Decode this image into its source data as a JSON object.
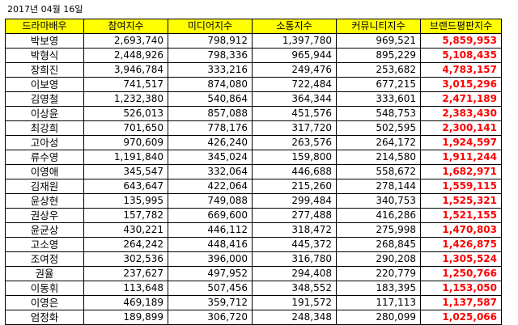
{
  "caption": "2017년 04월 16일",
  "headers": [
    "드라마배우",
    "참여지수",
    "미디어지수",
    "소통지수",
    "커뮤니티지수",
    "브랜드평판지수"
  ],
  "accent_color": "#ff0000",
  "header_color": "#ffff00",
  "rows": [
    {
      "name": "박보영",
      "participation": "2,693,740",
      "media": "798,912",
      "communication": "1,397,780",
      "community": "969,521",
      "brand": "5,859,953"
    },
    {
      "name": "박형식",
      "participation": "2,448,926",
      "media": "798,336",
      "communication": "965,944",
      "community": "895,229",
      "brand": "5,108,435"
    },
    {
      "name": "장희진",
      "participation": "3,946,784",
      "media": "333,216",
      "communication": "249,476",
      "community": "253,682",
      "brand": "4,783,157"
    },
    {
      "name": "이보영",
      "participation": "741,517",
      "media": "874,080",
      "communication": "722,484",
      "community": "677,215",
      "brand": "3,015,296"
    },
    {
      "name": "김영철",
      "participation": "1,232,380",
      "media": "540,864",
      "communication": "364,344",
      "community": "333,601",
      "brand": "2,471,189"
    },
    {
      "name": "이상윤",
      "participation": "526,013",
      "media": "857,088",
      "communication": "451,576",
      "community": "548,753",
      "brand": "2,383,430"
    },
    {
      "name": "최강희",
      "participation": "701,650",
      "media": "778,176",
      "communication": "317,720",
      "community": "502,595",
      "brand": "2,300,141"
    },
    {
      "name": "고아성",
      "participation": "970,609",
      "media": "426,240",
      "communication": "263,576",
      "community": "264,172",
      "brand": "1,924,597"
    },
    {
      "name": "류수영",
      "participation": "1,191,840",
      "media": "345,024",
      "communication": "159,800",
      "community": "214,580",
      "brand": "1,911,244"
    },
    {
      "name": "이영애",
      "participation": "345,547",
      "media": "332,064",
      "communication": "446,688",
      "community": "558,672",
      "brand": "1,682,971"
    },
    {
      "name": "김재원",
      "participation": "643,647",
      "media": "422,064",
      "communication": "215,260",
      "community": "278,144",
      "brand": "1,559,115"
    },
    {
      "name": "윤상현",
      "participation": "135,995",
      "media": "749,088",
      "communication": "299,484",
      "community": "340,753",
      "brand": "1,525,321"
    },
    {
      "name": "권상우",
      "participation": "157,782",
      "media": "669,600",
      "communication": "277,488",
      "community": "416,286",
      "brand": "1,521,155"
    },
    {
      "name": "윤균상",
      "participation": "430,221",
      "media": "446,112",
      "communication": "318,472",
      "community": "275,998",
      "brand": "1,470,803"
    },
    {
      "name": "고소영",
      "participation": "264,242",
      "media": "448,416",
      "communication": "445,372",
      "community": "268,845",
      "brand": "1,426,875"
    },
    {
      "name": "조여정",
      "participation": "302,536",
      "media": "396,000",
      "communication": "316,780",
      "community": "290,208",
      "brand": "1,305,524"
    },
    {
      "name": "권율",
      "participation": "237,627",
      "media": "497,952",
      "communication": "294,408",
      "community": "220,779",
      "brand": "1,250,766"
    },
    {
      "name": "이동휘",
      "participation": "113,648",
      "media": "507,456",
      "communication": "348,552",
      "community": "183,395",
      "brand": "1,153,050"
    },
    {
      "name": "이영은",
      "participation": "469,189",
      "media": "359,712",
      "communication": "191,572",
      "community": "117,113",
      "brand": "1,137,587"
    },
    {
      "name": "엄정화",
      "participation": "189,899",
      "media": "306,720",
      "communication": "248,348",
      "community": "280,099",
      "brand": "1,025,066"
    }
  ]
}
